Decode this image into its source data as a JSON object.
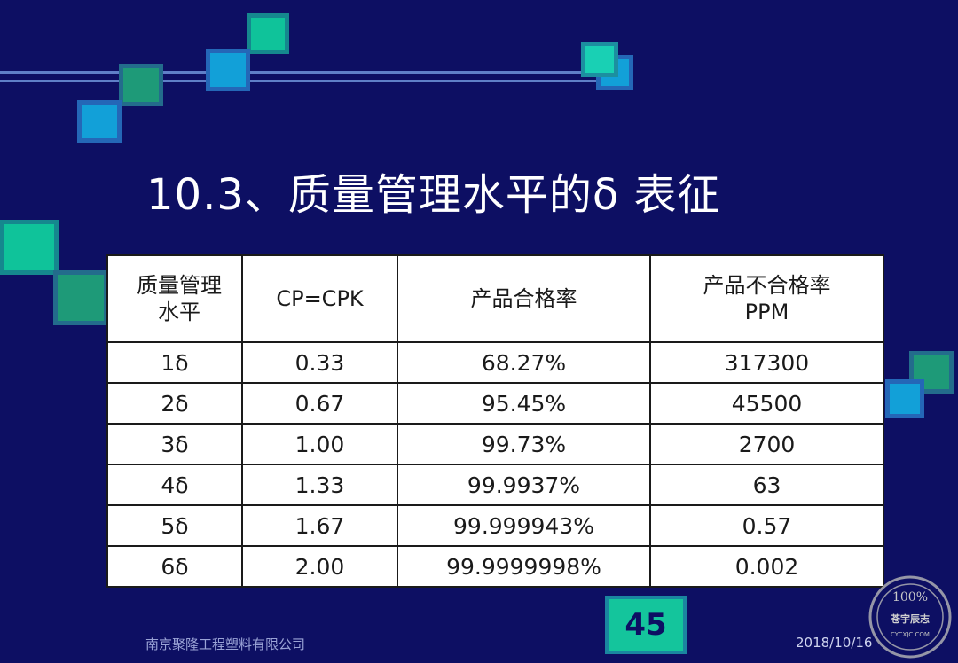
{
  "slide": {
    "title": "10.3、质量管理水平的δ 表征",
    "table": {
      "headers": [
        "质量管理\n水平",
        "CP=CPK",
        "产品合格率",
        "产品不合格率\nPPM"
      ],
      "rows": [
        [
          "1δ",
          "0.33",
          "68.27%",
          "317300"
        ],
        [
          "2δ",
          "0.67",
          "95.45%",
          "45500"
        ],
        [
          "3δ",
          "1.00",
          "99.73%",
          "2700"
        ],
        [
          "4δ",
          "1.33",
          "99.9937%",
          "63"
        ],
        [
          "5δ",
          "1.67",
          "99.999943%",
          "0.57"
        ],
        [
          "6δ",
          "2.00",
          "99.9999998%",
          "0.002"
        ]
      ]
    },
    "footer_company": "南京聚隆工程塑料有限公司",
    "page_number": "45",
    "date": "2018/10/16"
  },
  "watermark": {
    "top_text": "100%",
    "middle_text": "苍宇辰志",
    "bottom_text": "CYCXJC.COM"
  },
  "colors": {
    "background": "#0d0f63",
    "accent_teal": "#14c59c",
    "accent_blue": "#12a0d8"
  }
}
